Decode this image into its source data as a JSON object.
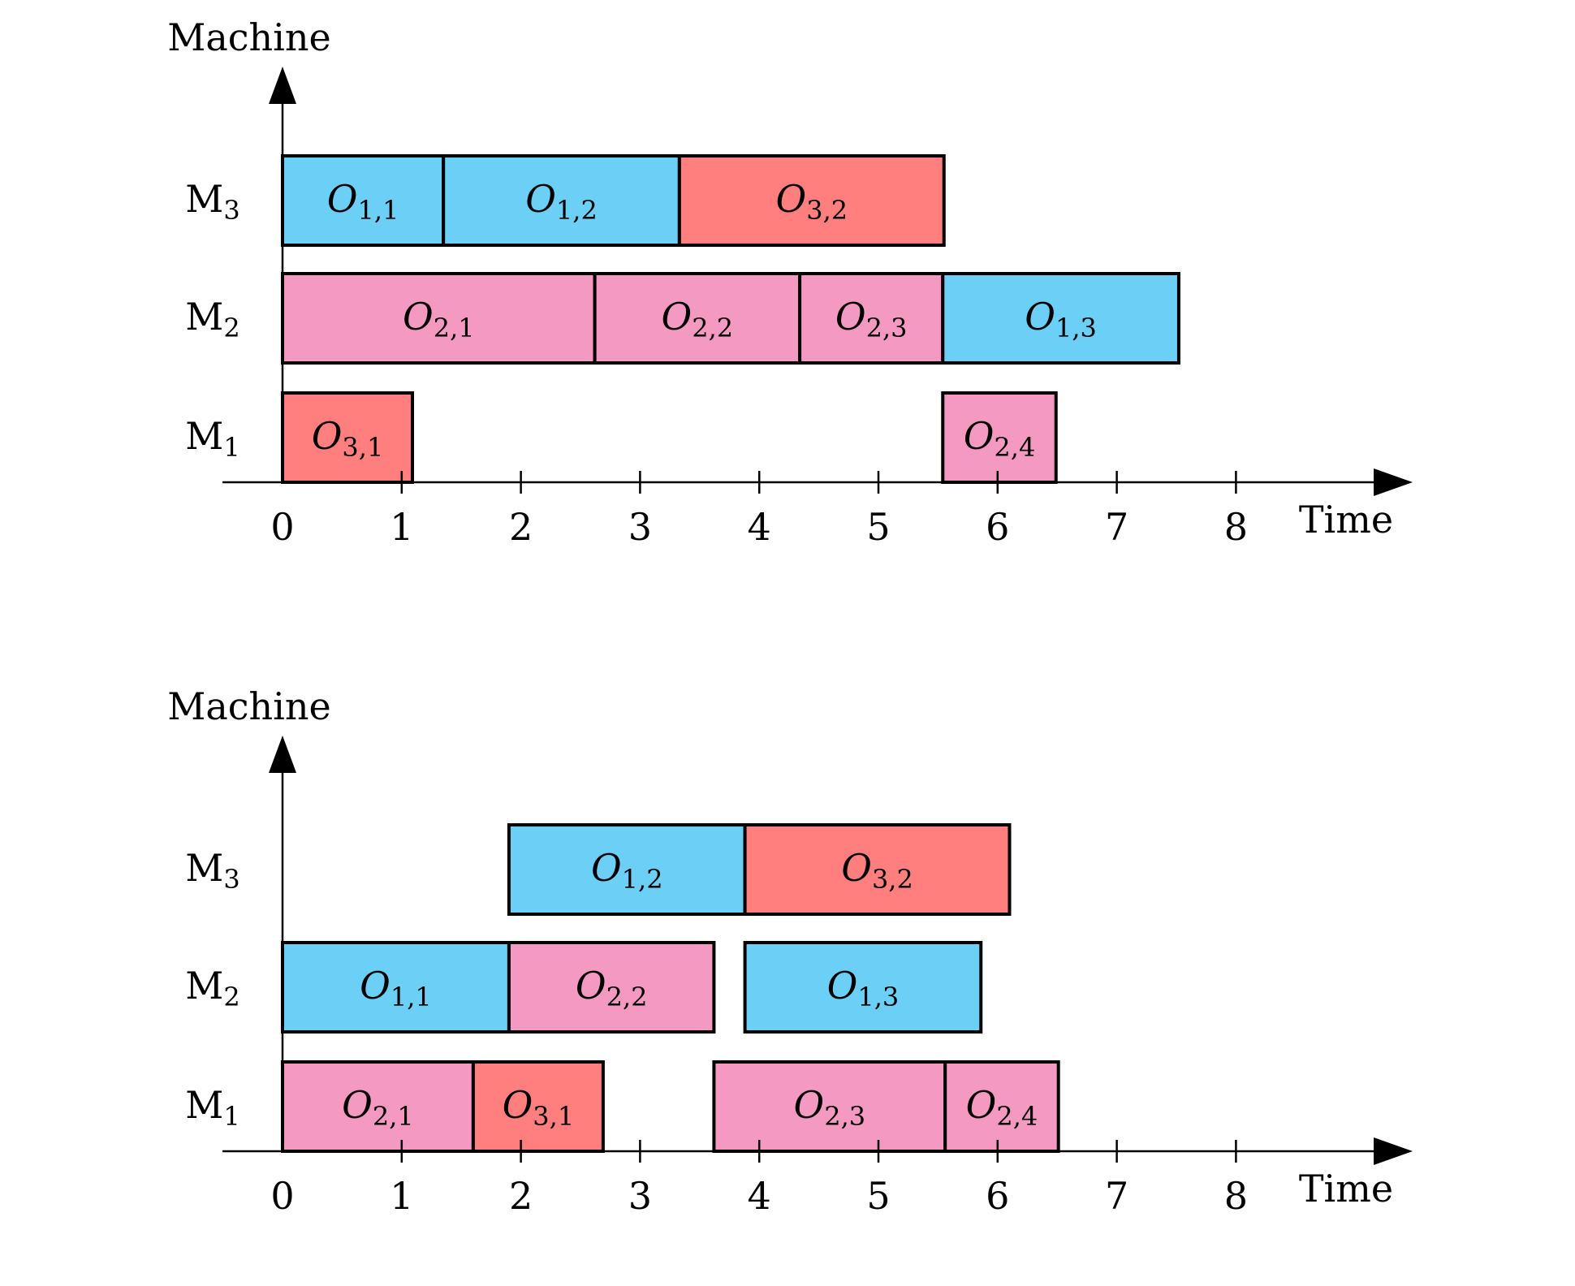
{
  "chart_data": [
    {
      "type": "gantt",
      "ylabel": "Machine",
      "xlabel": "Time",
      "xlim": [
        0,
        8
      ],
      "x_ticks": [
        "0",
        "1",
        "2",
        "3",
        "4",
        "5",
        "6",
        "7",
        "8"
      ],
      "machines": [
        "M1",
        "M2",
        "M3"
      ],
      "machine_labels": [
        {
          "base": "M",
          "sub": "1"
        },
        {
          "base": "M",
          "sub": "2"
        },
        {
          "base": "M",
          "sub": "3"
        }
      ],
      "job_colors": {
        "1": "#6CCFF6",
        "2": "#F49AC2",
        "3": "#FF7F7F"
      },
      "operations": [
        {
          "label_base": "O",
          "label_sub": "1,1",
          "job": 1,
          "machine": 3,
          "start": 0,
          "end": 1.35
        },
        {
          "label_base": "O",
          "label_sub": "1,2",
          "job": 1,
          "machine": 3,
          "start": 1.35,
          "end": 3.33
        },
        {
          "label_base": "O",
          "label_sub": "3,2",
          "job": 3,
          "machine": 3,
          "start": 3.33,
          "end": 5.55
        },
        {
          "label_base": "O",
          "label_sub": "2,1",
          "job": 2,
          "machine": 2,
          "start": 0,
          "end": 2.62
        },
        {
          "label_base": "O",
          "label_sub": "2,2",
          "job": 2,
          "machine": 2,
          "start": 2.62,
          "end": 4.34
        },
        {
          "label_base": "O",
          "label_sub": "2,3",
          "job": 2,
          "machine": 2,
          "start": 4.34,
          "end": 5.54
        },
        {
          "label_base": "O",
          "label_sub": "1,3",
          "job": 1,
          "machine": 2,
          "start": 5.54,
          "end": 7.52
        },
        {
          "label_base": "O",
          "label_sub": "3,1",
          "job": 3,
          "machine": 1,
          "start": 0,
          "end": 1.09
        },
        {
          "label_base": "O",
          "label_sub": "2,4",
          "job": 2,
          "machine": 1,
          "start": 5.54,
          "end": 6.49
        }
      ]
    },
    {
      "type": "gantt",
      "ylabel": "Machine",
      "xlabel": "Time",
      "xlim": [
        0,
        8
      ],
      "x_ticks": [
        "0",
        "1",
        "2",
        "3",
        "4",
        "5",
        "6",
        "7",
        "8"
      ],
      "machines": [
        "M1",
        "M2",
        "M3"
      ],
      "machine_labels": [
        {
          "base": "M",
          "sub": "1"
        },
        {
          "base": "M",
          "sub": "2"
        },
        {
          "base": "M",
          "sub": "3"
        }
      ],
      "job_colors": {
        "1": "#6CCFF6",
        "2": "#F49AC2",
        "3": "#FF7F7F"
      },
      "operations": [
        {
          "label_base": "O",
          "label_sub": "1,2",
          "job": 1,
          "machine": 3,
          "start": 1.9,
          "end": 3.88
        },
        {
          "label_base": "O",
          "label_sub": "3,2",
          "job": 3,
          "machine": 3,
          "start": 3.88,
          "end": 6.1
        },
        {
          "label_base": "O",
          "label_sub": "1,1",
          "job": 1,
          "machine": 2,
          "start": 0,
          "end": 1.9
        },
        {
          "label_base": "O",
          "label_sub": "2,2",
          "job": 2,
          "machine": 2,
          "start": 1.9,
          "end": 3.62
        },
        {
          "label_base": "O",
          "label_sub": "1,3",
          "job": 1,
          "machine": 2,
          "start": 3.88,
          "end": 5.86
        },
        {
          "label_base": "O",
          "label_sub": "2,1",
          "job": 2,
          "machine": 1,
          "start": 0,
          "end": 1.6
        },
        {
          "label_base": "O",
          "label_sub": "3,1",
          "job": 3,
          "machine": 1,
          "start": 1.6,
          "end": 2.69
        },
        {
          "label_base": "O",
          "label_sub": "2,3",
          "job": 2,
          "machine": 1,
          "start": 3.62,
          "end": 5.56
        },
        {
          "label_base": "O",
          "label_sub": "2,4",
          "job": 2,
          "machine": 1,
          "start": 5.56,
          "end": 6.51
        }
      ]
    }
  ]
}
